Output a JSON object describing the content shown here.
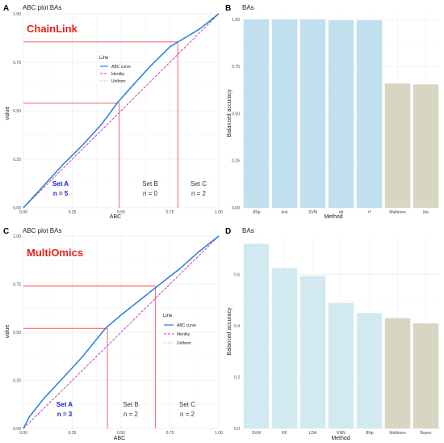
{
  "colors": {
    "abc_curve": "#1f7fe0",
    "identity": "#e020d0",
    "uniform": "#9ac85a",
    "threshold": "#f05555",
    "bar_light_blue": "#bfe0ec",
    "bar_pale_blue": "#d3e9f1",
    "bar_beige": "#d8d5c2",
    "set_a_text": "#1a1ad0",
    "badge_text": "#e8211d"
  },
  "legend": {
    "title": "Line",
    "items": [
      {
        "label": "ABC curve",
        "color": "#1f7fe0",
        "dash": "solid"
      },
      {
        "label": "Identity",
        "color": "#e020d0",
        "dash": "dashed"
      },
      {
        "label": "Uniform",
        "color": "#9ac85a",
        "dash": "dotted"
      }
    ]
  },
  "panels": [
    {
      "letter": "A",
      "title": "ABC plot BAs",
      "badge": "ChainLink",
      "set_a": "Set A",
      "set_a_n": "n = 5",
      "set_b": "Set B",
      "set_b_n": "n = 0",
      "set_c": "Set C",
      "set_c_n": "n = 2"
    },
    {
      "letter": "B",
      "title": "BAs"
    },
    {
      "letter": "C",
      "title": "ABC plot BAs",
      "badge": "MultiOmics",
      "set_a": "Set A",
      "set_a_n": "n = 3",
      "set_b": "Set B",
      "set_b_n": "n = 2",
      "set_c": "Set C",
      "set_c_n": "n = 2"
    },
    {
      "letter": "D",
      "title": "BAs"
    }
  ],
  "chart_data": [
    {
      "type": "line",
      "title": "ABC plot BAs",
      "xlabel": "ABC",
      "ylabel": "value",
      "xlim": [
        0,
        1
      ],
      "ylim": [
        0,
        1
      ],
      "xticks": [
        "0.00",
        "0.25",
        "0.50",
        "0.75",
        "1.00"
      ],
      "yticks": [
        "0.00",
        "0.25",
        "0.50",
        "0.75",
        "1.00"
      ],
      "legend_position": "inside-top-center",
      "series": [
        {
          "name": "ABC curve",
          "x": [
            0,
            0.1,
            0.2,
            0.3,
            0.4,
            0.48,
            0.55,
            0.65,
            0.75,
            0.8,
            0.9,
            1.0
          ],
          "y": [
            0,
            0.11,
            0.22,
            0.32,
            0.43,
            0.54,
            0.62,
            0.73,
            0.83,
            0.86,
            0.92,
            1.0
          ]
        },
        {
          "name": "Identity",
          "x": [
            0,
            1
          ],
          "y": [
            0,
            1
          ]
        },
        {
          "name": "Uniform",
          "x": [
            0,
            1
          ],
          "y": [
            0,
            1
          ]
        }
      ],
      "thresholds": [
        {
          "x": 0.49,
          "y": 0.54
        },
        {
          "x": 0.79,
          "y": 0.855
        }
      ]
    },
    {
      "type": "bar",
      "title": "BAs",
      "xlabel": "Method",
      "ylabel": "Balanced accuracy",
      "ylim": [
        0,
        1.03
      ],
      "yticks": [
        "0.00",
        "0.25",
        "0.50",
        "0.75",
        "1.00"
      ],
      "categories": [
        "JRip",
        "knn",
        "SVM",
        "nb",
        "rf",
        "Multinom",
        "lda"
      ],
      "values": [
        1.0,
        1.0,
        1.0,
        0.995,
        0.995,
        0.66,
        0.655
      ],
      "bar_groups": [
        "light_blue",
        "light_blue",
        "light_blue",
        "light_blue",
        "light_blue",
        "beige",
        "beige"
      ]
    },
    {
      "type": "line",
      "title": "ABC plot BAs",
      "xlabel": "ABC",
      "ylabel": "value",
      "xlim": [
        0,
        1
      ],
      "ylim": [
        0,
        1
      ],
      "xticks": [
        "0.00",
        "0.25",
        "0.50",
        "0.75",
        "1.00"
      ],
      "yticks": [
        "0.00",
        "0.25",
        "0.50",
        "0.75",
        "1.00"
      ],
      "legend_position": "right-middle",
      "series": [
        {
          "name": "ABC curve",
          "x": [
            0,
            0.03,
            0.1,
            0.2,
            0.3,
            0.42,
            0.5,
            0.6,
            0.68,
            0.8,
            0.9,
            1.0
          ],
          "y": [
            0,
            0.06,
            0.15,
            0.26,
            0.37,
            0.52,
            0.59,
            0.67,
            0.735,
            0.83,
            0.92,
            1.0
          ]
        },
        {
          "name": "Identity",
          "x": [
            0,
            1
          ],
          "y": [
            0,
            1
          ]
        },
        {
          "name": "Uniform",
          "x": [
            0,
            1
          ],
          "y": [
            0,
            1
          ]
        }
      ],
      "thresholds": [
        {
          "x": 0.43,
          "y": 0.52
        },
        {
          "x": 0.675,
          "y": 0.74
        }
      ]
    },
    {
      "type": "bar",
      "title": "BAs",
      "xlabel": "Method",
      "ylabel": "Balanced accuracy",
      "ylim": [
        0,
        0.75
      ],
      "yticks": [
        "0.0",
        "0.2",
        "0.4",
        "0.6"
      ],
      "ytick_values": [
        0,
        0.2,
        0.4,
        0.6
      ],
      "categories": [
        "SVM",
        "RF",
        "LDA",
        "KNN",
        "JRip",
        "Multinom",
        "Bayes"
      ],
      "values": [
        0.72,
        0.625,
        0.595,
        0.49,
        0.45,
        0.43,
        0.41
      ],
      "bar_groups": [
        "pale_blue",
        "pale_blue",
        "pale_blue",
        "pale_blue",
        "pale_blue",
        "beige",
        "beige"
      ]
    }
  ]
}
